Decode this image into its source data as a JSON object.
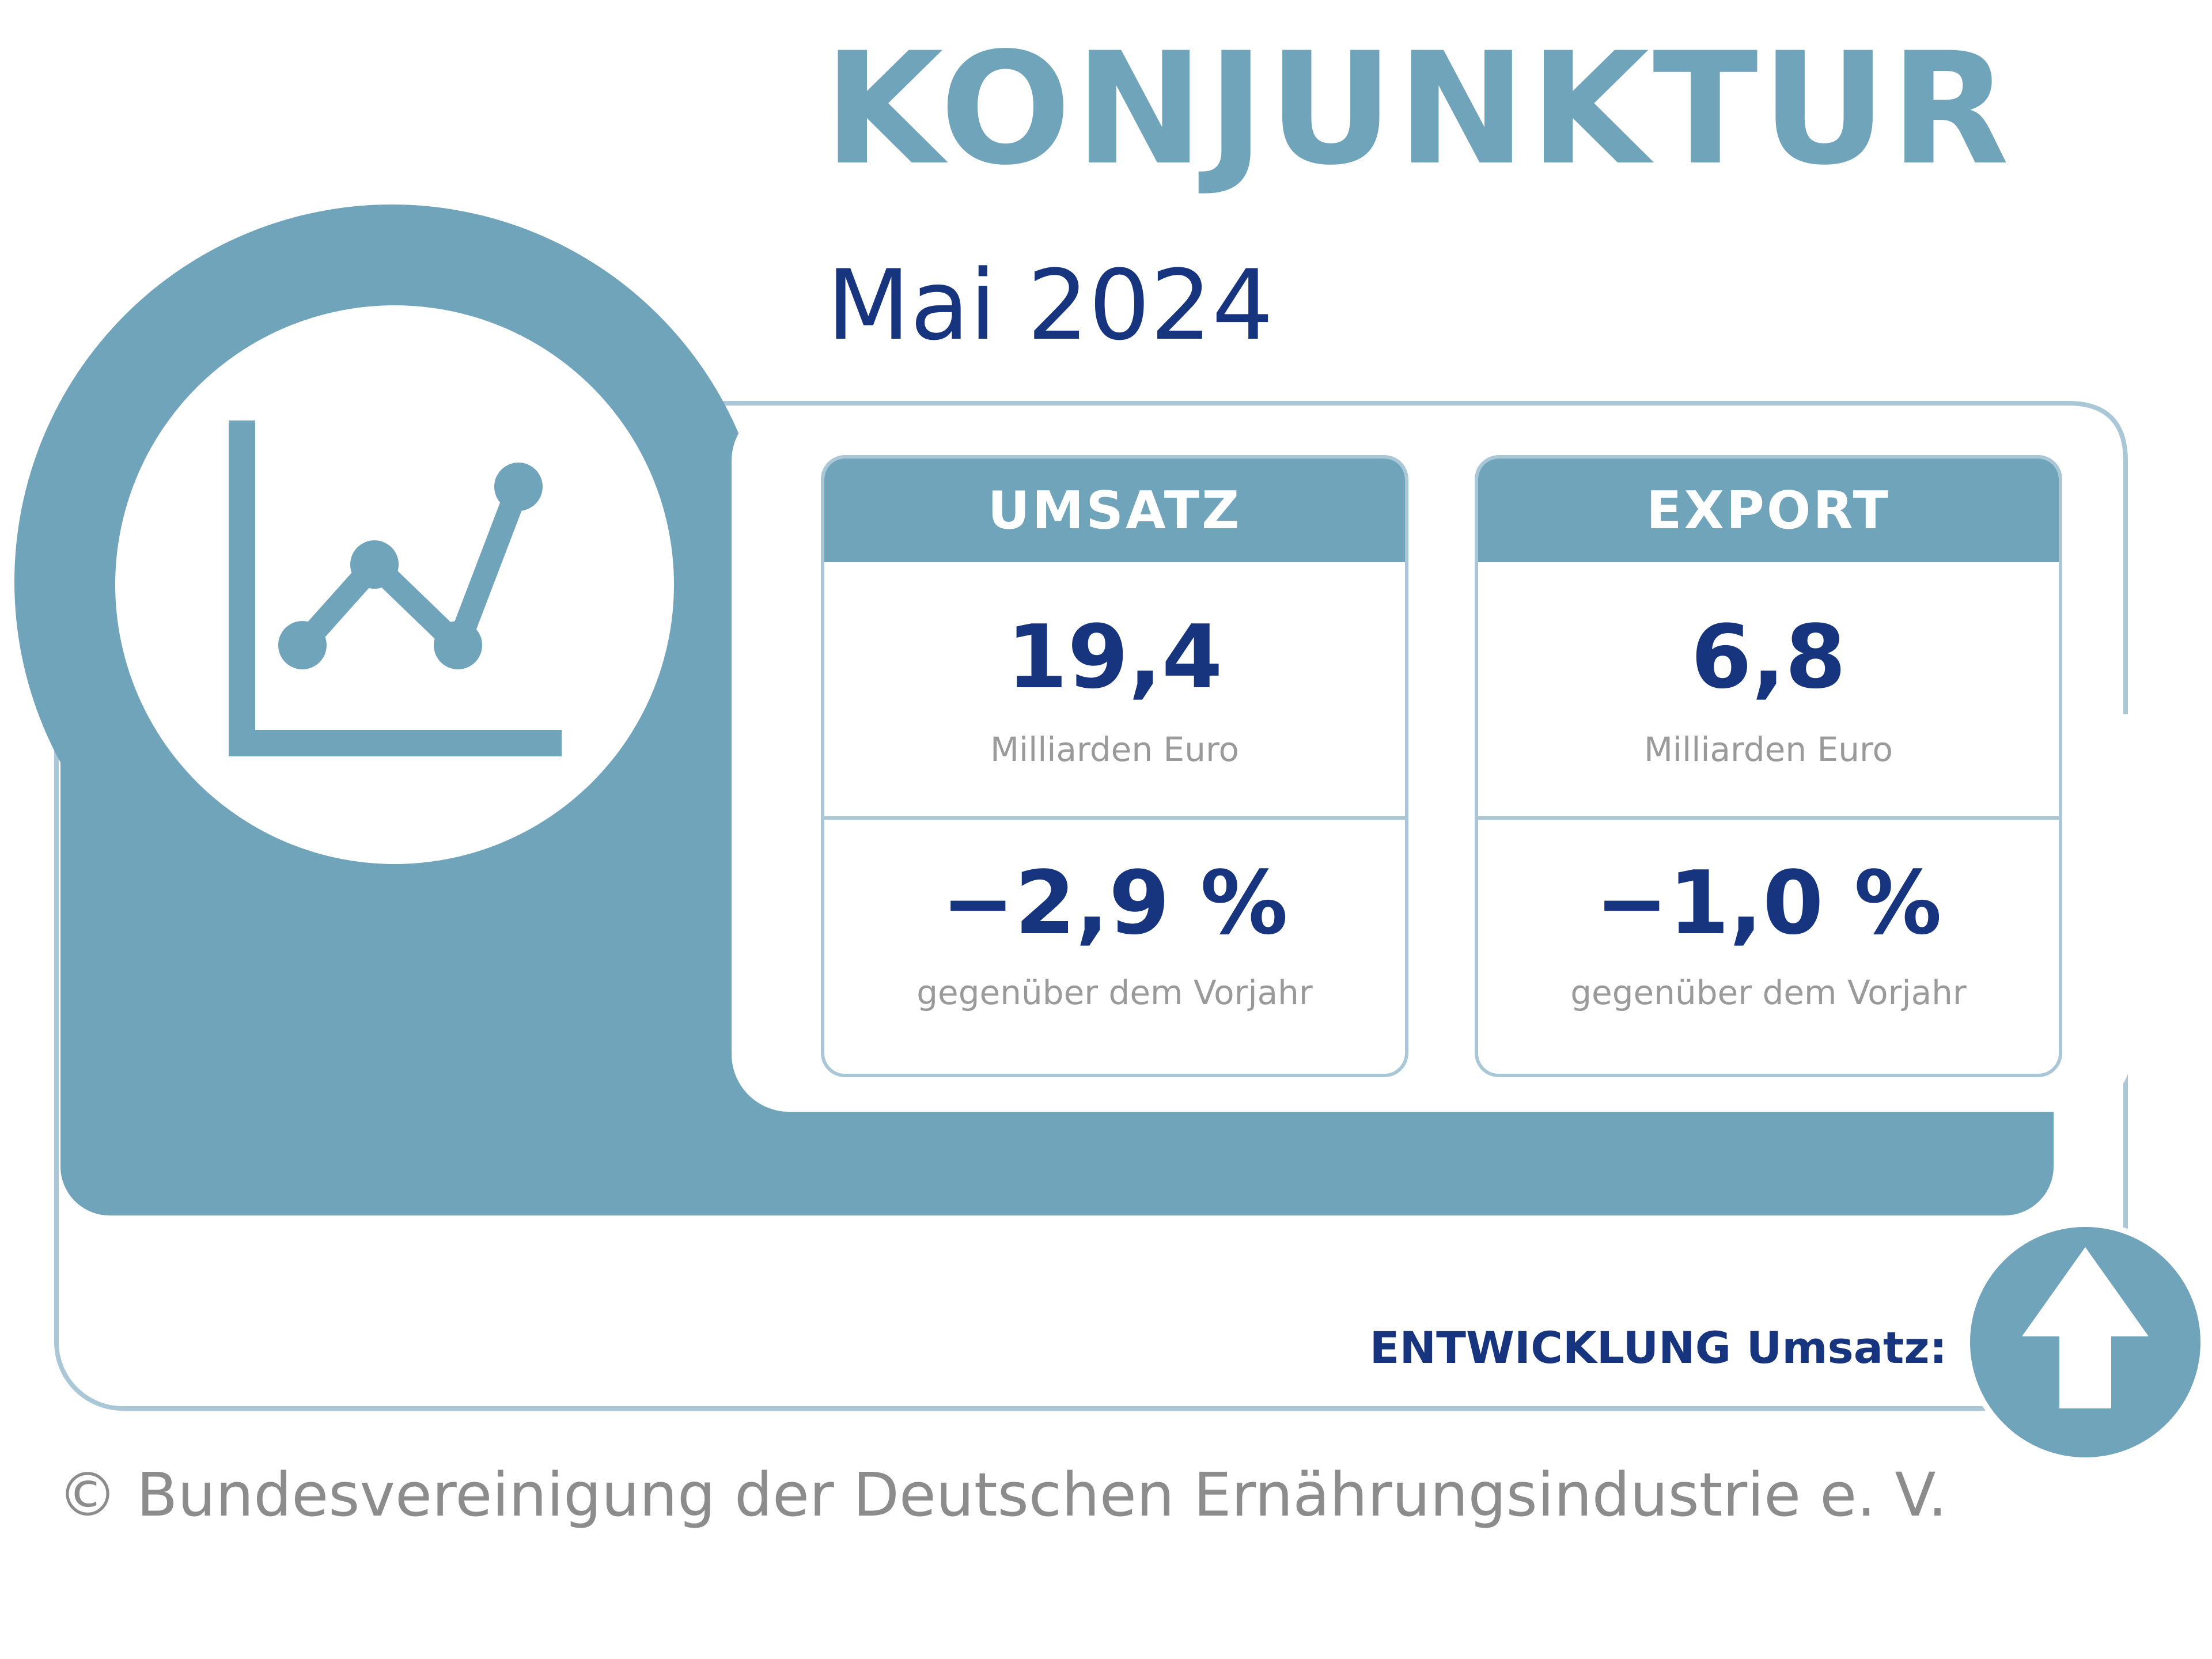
{
  "colors": {
    "accent": "#6fa4bb",
    "accent_light": "#a9c7d6",
    "navy": "#17347f",
    "gray_text": "#9a9a9a",
    "copyright_gray": "#8c8c8c",
    "white": "#ffffff"
  },
  "header": {
    "title": "KONJUNKTUR",
    "subtitle": "Mai 2024"
  },
  "icons": {
    "main": "line-chart-icon",
    "trend": "arrow-up-icon"
  },
  "cards": [
    {
      "label": "UMSATZ",
      "value": "19,4",
      "unit": "Milliarden Euro",
      "change": "−2,9 %",
      "change_note": "gegenüber dem Vorjahr"
    },
    {
      "label": "EXPORT",
      "value": "6,8",
      "unit": "Milliarden Euro",
      "change": "−1,0 %",
      "change_note": "gegenüber dem Vorjahr"
    }
  ],
  "trend": {
    "label": "ENTWICKLUNG Umsatz:",
    "direction": "up"
  },
  "footer": {
    "copyright": "© Bundesvereinigung der Deutschen Ernährungsindustrie e. V."
  }
}
